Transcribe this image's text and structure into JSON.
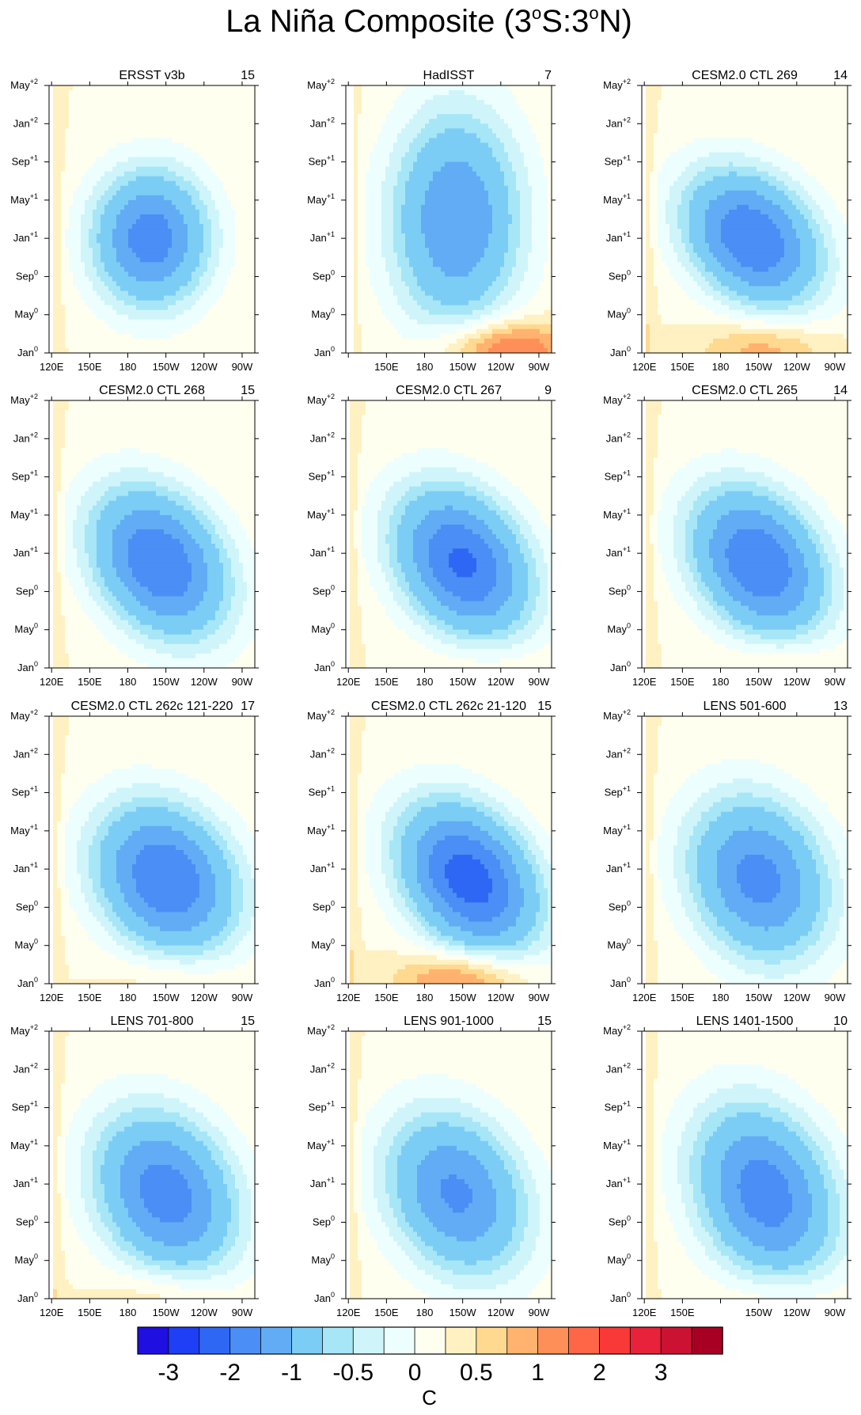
{
  "chart_data": {
    "type": "heatmap",
    "title": "La Niña Composite (3°S:3°N)",
    "title_parts": {
      "prefix": "La Niña Composite (3",
      "deg1": "o",
      "mid": "S:3",
      "deg2": "o",
      "suffix": "N)"
    },
    "x_axis": {
      "ticks": [
        {
          "label": "120E",
          "lon": 120
        },
        {
          "label": "150E",
          "lon": 150
        },
        {
          "label": "180",
          "lon": 180
        },
        {
          "label": "150W",
          "lon": 210
        },
        {
          "label": "120W",
          "lon": 240
        },
        {
          "label": "90W",
          "lon": 270
        }
      ],
      "range": [
        118,
        280
      ]
    },
    "y_axis": {
      "ticks": [
        {
          "label": "Jan",
          "sup": "0",
          "month": 0
        },
        {
          "label": "May",
          "sup": "0",
          "month": 4
        },
        {
          "label": "Sep",
          "sup": "0",
          "month": 8
        },
        {
          "label": "Jan",
          "sup": "+1",
          "month": 12
        },
        {
          "label": "May",
          "sup": "+1",
          "month": 16
        },
        {
          "label": "Sep",
          "sup": "+1",
          "month": 20
        },
        {
          "label": "Jan",
          "sup": "+2",
          "month": 24
        },
        {
          "label": "May",
          "sup": "+2",
          "month": 28
        }
      ],
      "range": [
        0,
        28
      ]
    },
    "colorbar": {
      "units": "C",
      "colors": [
        "#1f0fe0",
        "#1e3ff5",
        "#2f67f5",
        "#4b8ef5",
        "#62acf5",
        "#7ccdf5",
        "#a6e6f7",
        "#cff5fa",
        "#ecfffe",
        "#fffff0",
        "#fff1c2",
        "#ffd98f",
        "#ffb36e",
        "#ff8f58",
        "#ff6648",
        "#f93838",
        "#e8223a",
        "#cc1232",
        "#a80022"
      ],
      "labels": [
        {
          "text": "-3",
          "boundary": 1
        },
        {
          "text": "-2",
          "boundary": 3
        },
        {
          "text": "-1",
          "boundary": 5
        },
        {
          "text": "-0.5",
          "boundary": 7
        },
        {
          "text": "0",
          "boundary": 9
        },
        {
          "text": "0.5",
          "boundary": 11
        },
        {
          "text": "1",
          "boundary": 13
        },
        {
          "text": "2",
          "boundary": 15
        },
        {
          "text": "3",
          "boundary": 17
        }
      ]
    },
    "panels": [
      {
        "name": "ERSST v3b",
        "count": "15",
        "peak": -2.3,
        "lon": 198,
        "month": 12,
        "tilt": 0.0,
        "sx": 32,
        "sy": 5.0,
        "warm": 0.0,
        "warmlon": 230,
        "x_min": 120,
        "hidden_ticks": []
      },
      {
        "name": "HadISST",
        "count": "7",
        "peak": -2.0,
        "lon": 205,
        "month": 14,
        "tilt": 0.0,
        "sx": 36,
        "sy": 8.0,
        "warm": 1.2,
        "warmlon": 245,
        "x_min": 125,
        "hidden_ticks": [
          "120E"
        ]
      },
      {
        "name": "CESM2.0 CTL 269",
        "count": "14",
        "peak": -2.5,
        "lon": 205,
        "month": 12,
        "tilt": 2.2,
        "sx": 36,
        "sy": 5.0,
        "warm": 0.7,
        "warmlon": 215,
        "x_min": 120,
        "hidden_ticks": []
      },
      {
        "name": "CESM2.0 CTL 268",
        "count": "15",
        "peak": -2.5,
        "lon": 205,
        "month": 11,
        "tilt": 2.0,
        "sx": 36,
        "sy": 5.5,
        "warm": 0.0,
        "warmlon": 230,
        "x_min": 120,
        "hidden_ticks": []
      },
      {
        "name": "CESM2.0 CTL 267",
        "count": "9",
        "peak": -2.6,
        "lon": 210,
        "month": 11,
        "tilt": 2.0,
        "sx": 36,
        "sy": 5.5,
        "warm": 0.2,
        "warmlon": 230,
        "x_min": 120,
        "hidden_ticks": []
      },
      {
        "name": "CESM2.0 CTL 265",
        "count": "14",
        "peak": -2.5,
        "lon": 210,
        "month": 11,
        "tilt": 2.0,
        "sx": 36,
        "sy": 5.5,
        "warm": 0.3,
        "warmlon": 230,
        "x_min": 120,
        "hidden_ticks": []
      },
      {
        "name": "CESM2.0 CTL 262c 121-220",
        "count": "17",
        "peak": -2.5,
        "lon": 210,
        "month": 11,
        "tilt": 1.5,
        "sx": 38,
        "sy": 5.5,
        "warm": 0.3,
        "warmlon": 215,
        "x_min": 120,
        "hidden_ticks": []
      },
      {
        "name": "CESM2.0 CTL 262c 21-120",
        "count": "15",
        "peak": -2.8,
        "lon": 215,
        "month": 11,
        "tilt": 2.2,
        "sx": 36,
        "sy": 5.5,
        "warm": 1.0,
        "warmlon": 210,
        "x_min": 120,
        "hidden_ticks": []
      },
      {
        "name": "LENS 501-600",
        "count": "13",
        "peak": -2.2,
        "lon": 210,
        "month": 11,
        "tilt": 1.2,
        "sx": 38,
        "sy": 6.0,
        "warm": 0.0,
        "warmlon": 230,
        "x_min": 120,
        "hidden_ticks": []
      },
      {
        "name": "LENS 701-800",
        "count": "15",
        "peak": -2.3,
        "lon": 210,
        "month": 11,
        "tilt": 1.5,
        "sx": 38,
        "sy": 6.0,
        "warm": 0.4,
        "warmlon": 210,
        "x_min": 120,
        "hidden_ticks": []
      },
      {
        "name": "LENS 901-1000",
        "count": "15",
        "peak": -2.1,
        "lon": 205,
        "month": 11,
        "tilt": 1.5,
        "sx": 38,
        "sy": 6.0,
        "warm": 0.0,
        "warmlon": 230,
        "x_min": 120,
        "hidden_ticks": []
      },
      {
        "name": "LENS 1401-1500",
        "count": "10",
        "peak": -2.3,
        "lon": 215,
        "month": 11,
        "tilt": 1.5,
        "sx": 38,
        "sy": 6.5,
        "warm": 0.3,
        "warmlon": 230,
        "x_min": 120,
        "hidden_ticks": [
          "180"
        ]
      }
    ]
  }
}
